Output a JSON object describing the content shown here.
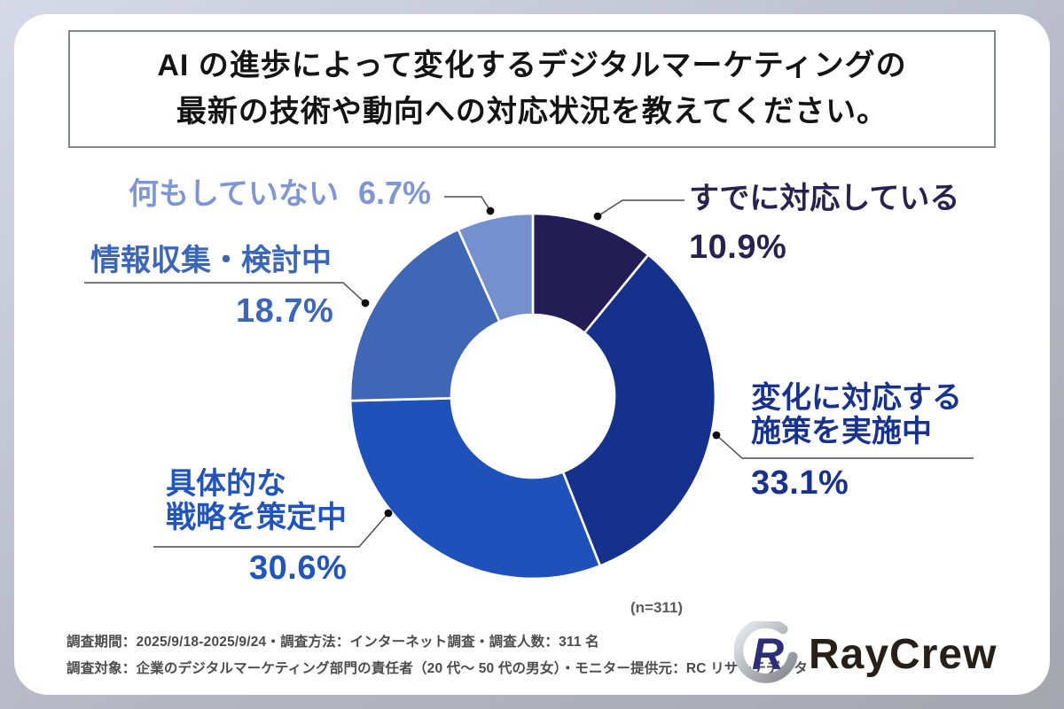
{
  "page": {
    "title_line1": "AI の進歩によって変化するデジタルマーケティングの",
    "title_line2": "最新の技術や動向への対応状況を教えてください。",
    "sample_note": "(n=311)",
    "footer_line1": "調査期間：2025/9/18-2025/9/24・調査方法：インターネット調査・調査人数：311 名",
    "footer_line2": "調査対象：企業のデジタルマーケティング部門の責任者（20 代～ 50 代の男女）・モニター提供元：RC リサーチデータ",
    "brand_name": "RayCrew",
    "brand_icon": "raycrew-r-emblem"
  },
  "chart_data": {
    "type": "pie",
    "subtype": "donut",
    "title": "AI の進歩によって変化するデジタルマーケティングの最新の技術や動向への対応状況を教えてください。",
    "n": 311,
    "unit": "%",
    "start_angle_deg": 0,
    "direction": "clockwise",
    "legend_position": "callouts",
    "grid": false,
    "segments": [
      {
        "label": "すでに対応している",
        "label_lines": [
          "すでに対応している"
        ],
        "value": 10.9,
        "display": "10.9%",
        "color": "#231c55",
        "label_color": "#29224f"
      },
      {
        "label": "変化に対応する施策を実施中",
        "label_lines": [
          "変化に対応する",
          "施策を実施中"
        ],
        "value": 33.1,
        "display": "33.1%",
        "color": "#15318c",
        "label_color": "#17338e"
      },
      {
        "label": "具体的な戦略を策定中",
        "label_lines": [
          "具体的な",
          "戦略を策定中"
        ],
        "value": 30.6,
        "display": "30.6%",
        "color": "#1e51ba",
        "label_color": "#2154bc"
      },
      {
        "label": "情報収集・検討中",
        "label_lines": [
          "情報収集・検討中"
        ],
        "value": 18.7,
        "display": "18.7%",
        "color": "#4067b6",
        "label_color": "#3c66b8"
      },
      {
        "label": "何もしていない",
        "label_lines": [
          "何もしていない"
        ],
        "value": 6.7,
        "display": "6.7%",
        "color": "#7590cf",
        "label_color": "#7e97d3"
      }
    ],
    "leader_line_color": "#4a4a4a",
    "leader_dot_color": "#0e0e0e"
  }
}
